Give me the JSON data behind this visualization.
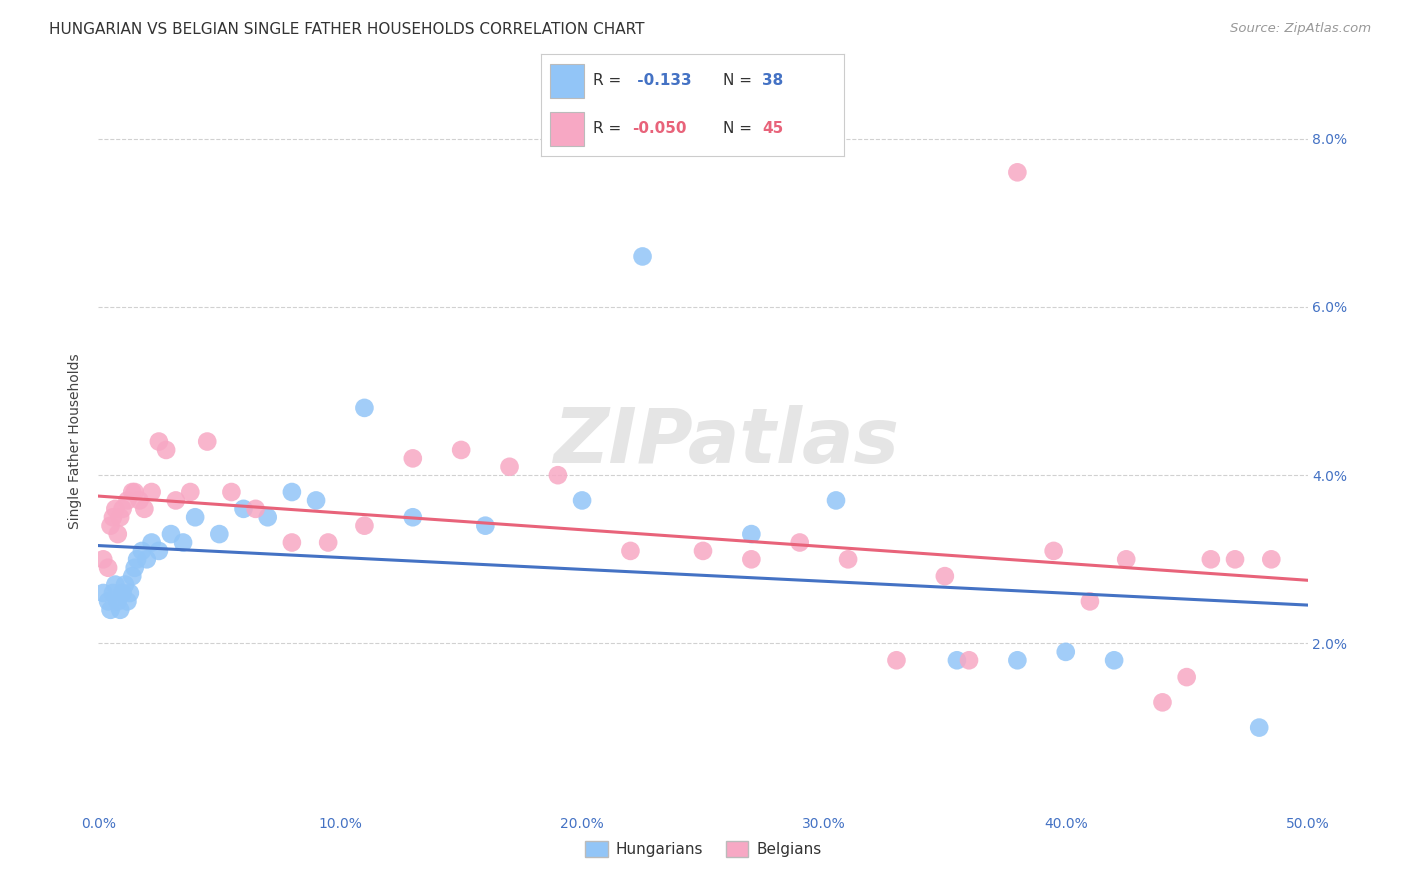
{
  "title": "HUNGARIAN VS BELGIAN SINGLE FATHER HOUSEHOLDS CORRELATION CHART",
  "source": "Source: ZipAtlas.com",
  "ylabel": "Single Father Households",
  "xlim": [
    0.0,
    0.5
  ],
  "ylim": [
    0.0,
    0.088
  ],
  "hungarian_color": "#92c5f7",
  "belgian_color": "#f7a8c4",
  "hungarian_line_color": "#4472c4",
  "belgian_line_color": "#e8637a",
  "R_hungarian": -0.133,
  "N_hungarian": 38,
  "R_belgian": -0.05,
  "N_belgian": 45,
  "watermark": "ZIPatlas",
  "background_color": "#ffffff",
  "grid_color": "#cccccc",
  "hungarian_x": [
    0.002,
    0.004,
    0.005,
    0.006,
    0.007,
    0.008,
    0.009,
    0.01,
    0.011,
    0.012,
    0.013,
    0.014,
    0.015,
    0.016,
    0.018,
    0.02,
    0.022,
    0.025,
    0.03,
    0.035,
    0.04,
    0.05,
    0.06,
    0.07,
    0.08,
    0.09,
    0.11,
    0.13,
    0.16,
    0.2,
    0.225,
    0.27,
    0.305,
    0.355,
    0.38,
    0.4,
    0.42,
    0.48
  ],
  "hungarian_y": [
    0.026,
    0.025,
    0.024,
    0.026,
    0.027,
    0.025,
    0.024,
    0.026,
    0.027,
    0.025,
    0.026,
    0.028,
    0.029,
    0.03,
    0.031,
    0.03,
    0.032,
    0.031,
    0.033,
    0.032,
    0.035,
    0.033,
    0.036,
    0.035,
    0.038,
    0.037,
    0.048,
    0.035,
    0.034,
    0.037,
    0.066,
    0.033,
    0.037,
    0.018,
    0.018,
    0.019,
    0.018,
    0.01
  ],
  "belgian_x": [
    0.002,
    0.004,
    0.005,
    0.006,
    0.007,
    0.008,
    0.009,
    0.01,
    0.012,
    0.014,
    0.015,
    0.017,
    0.019,
    0.022,
    0.025,
    0.028,
    0.032,
    0.038,
    0.045,
    0.055,
    0.065,
    0.08,
    0.095,
    0.11,
    0.13,
    0.15,
    0.17,
    0.19,
    0.22,
    0.25,
    0.27,
    0.29,
    0.31,
    0.33,
    0.35,
    0.36,
    0.38,
    0.395,
    0.41,
    0.425,
    0.44,
    0.45,
    0.46,
    0.47,
    0.485
  ],
  "belgian_y": [
    0.03,
    0.029,
    0.034,
    0.035,
    0.036,
    0.033,
    0.035,
    0.036,
    0.037,
    0.038,
    0.038,
    0.037,
    0.036,
    0.038,
    0.044,
    0.043,
    0.037,
    0.038,
    0.044,
    0.038,
    0.036,
    0.032,
    0.032,
    0.034,
    0.042,
    0.043,
    0.041,
    0.04,
    0.031,
    0.031,
    0.03,
    0.032,
    0.03,
    0.018,
    0.028,
    0.018,
    0.076,
    0.031,
    0.025,
    0.03,
    0.013,
    0.016,
    0.03,
    0.03,
    0.03
  ]
}
